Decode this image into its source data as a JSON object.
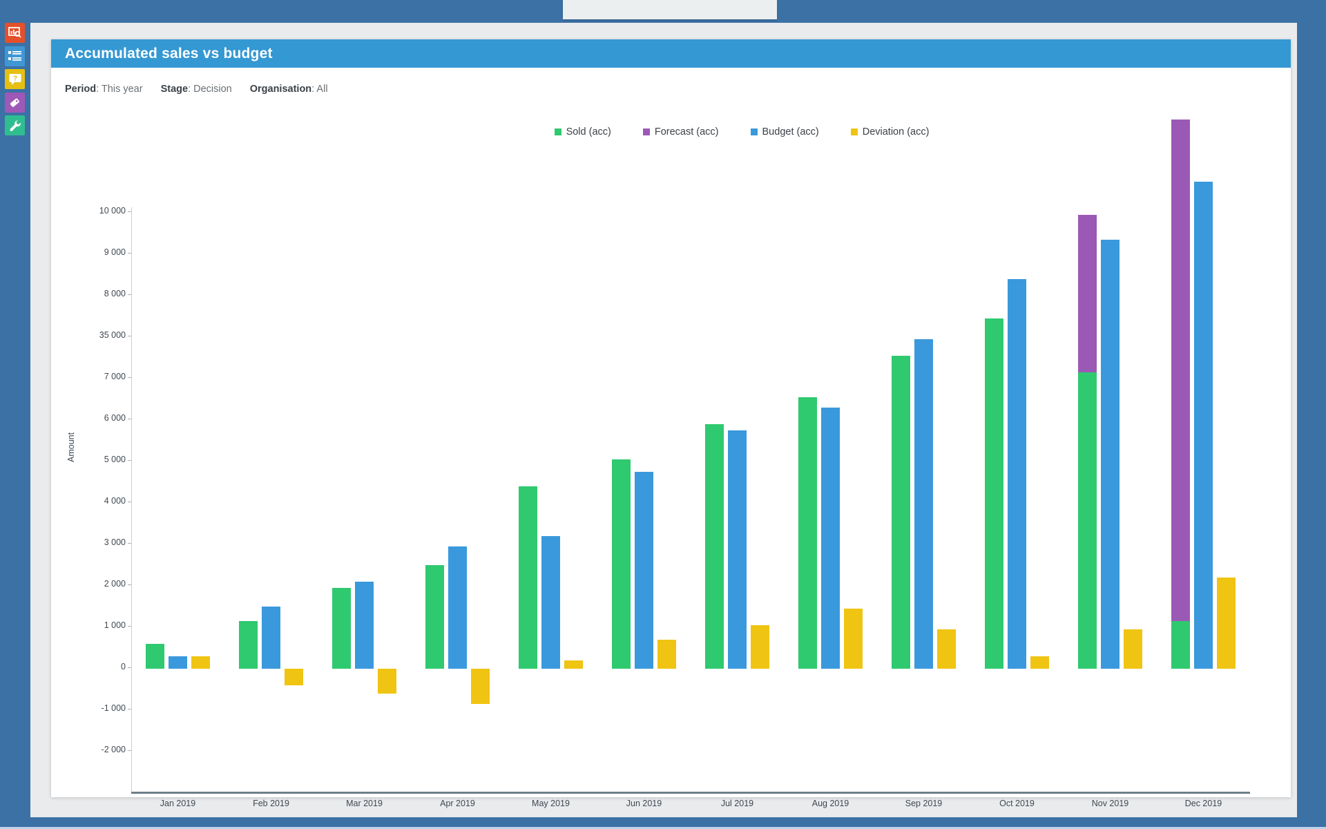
{
  "frame": {
    "tab_label": ""
  },
  "sidebar": {
    "items": [
      {
        "name": "report-search",
        "color": "#e4502a",
        "icon": "chart-search-icon"
      },
      {
        "name": "list-view",
        "color": "#3f97d3",
        "icon": "list-icon"
      },
      {
        "name": "help",
        "color": "#e5c011",
        "icon": "question-bubble-icon"
      },
      {
        "name": "tags",
        "color": "#9e59b8",
        "icon": "tag-icon"
      },
      {
        "name": "settings",
        "color": "#2fbe8f",
        "icon": "wrench-icon"
      }
    ]
  },
  "card": {
    "title": "Accumulated sales vs budget",
    "filters": [
      {
        "label": "Period",
        "value": "This year"
      },
      {
        "label": "Stage",
        "value": "Decision"
      },
      {
        "label": "Organisation",
        "value": "All"
      }
    ]
  },
  "chart_data": {
    "type": "bar",
    "title": "Accumulated sales vs budget",
    "ylabel": "Amount",
    "grid": false,
    "legend_position": "top",
    "categories": [
      "Jan 2019",
      "Feb 2019",
      "Mar 2019",
      "Apr 2019",
      "May 2019",
      "Jun 2019",
      "Jul 2019",
      "Aug 2019",
      "Sep 2019",
      "Oct 2019",
      "Nov 2019",
      "Dec 2019"
    ],
    "series": [
      {
        "name": "Sold (acc)",
        "color": "#2fc96f",
        "values": [
          600,
          1150,
          1950,
          2500,
          4400,
          5050,
          5900,
          6550,
          7550,
          8450,
          7150,
          1150
        ]
      },
      {
        "name": "Forecast (acc)",
        "color": "#9b59b6",
        "stacked_on": "Sold (acc)",
        "values": [
          null,
          null,
          null,
          null,
          null,
          null,
          null,
          null,
          null,
          null,
          10950,
          13250
        ]
      },
      {
        "name": "Budget (acc)",
        "color": "#3a99dc",
        "values": [
          300,
          1500,
          2100,
          2950,
          3200,
          4750,
          5750,
          6300,
          7950,
          9400,
          10350,
          11750
        ]
      },
      {
        "name": "Deviation (acc)",
        "color": "#f0c412",
        "values": [
          300,
          -400,
          -600,
          -850,
          200,
          700,
          1050,
          1450,
          950,
          300,
          950,
          2200
        ]
      }
    ],
    "y_tick_labels": [
      "10 000",
      "9 000",
      "8 000",
      "35 000",
      "7 000",
      "6 000",
      "5 000",
      "4 000",
      "3 000",
      "2 000",
      "1 000",
      "0",
      "-1 000",
      "-2 000"
    ],
    "y_tick_step_units": 1000,
    "ylim": [
      -2000,
      11000
    ],
    "axis_note": "y tick labels listed exactly as displayed (includes the '35 000' label between 8 000 and 7 000)"
  }
}
